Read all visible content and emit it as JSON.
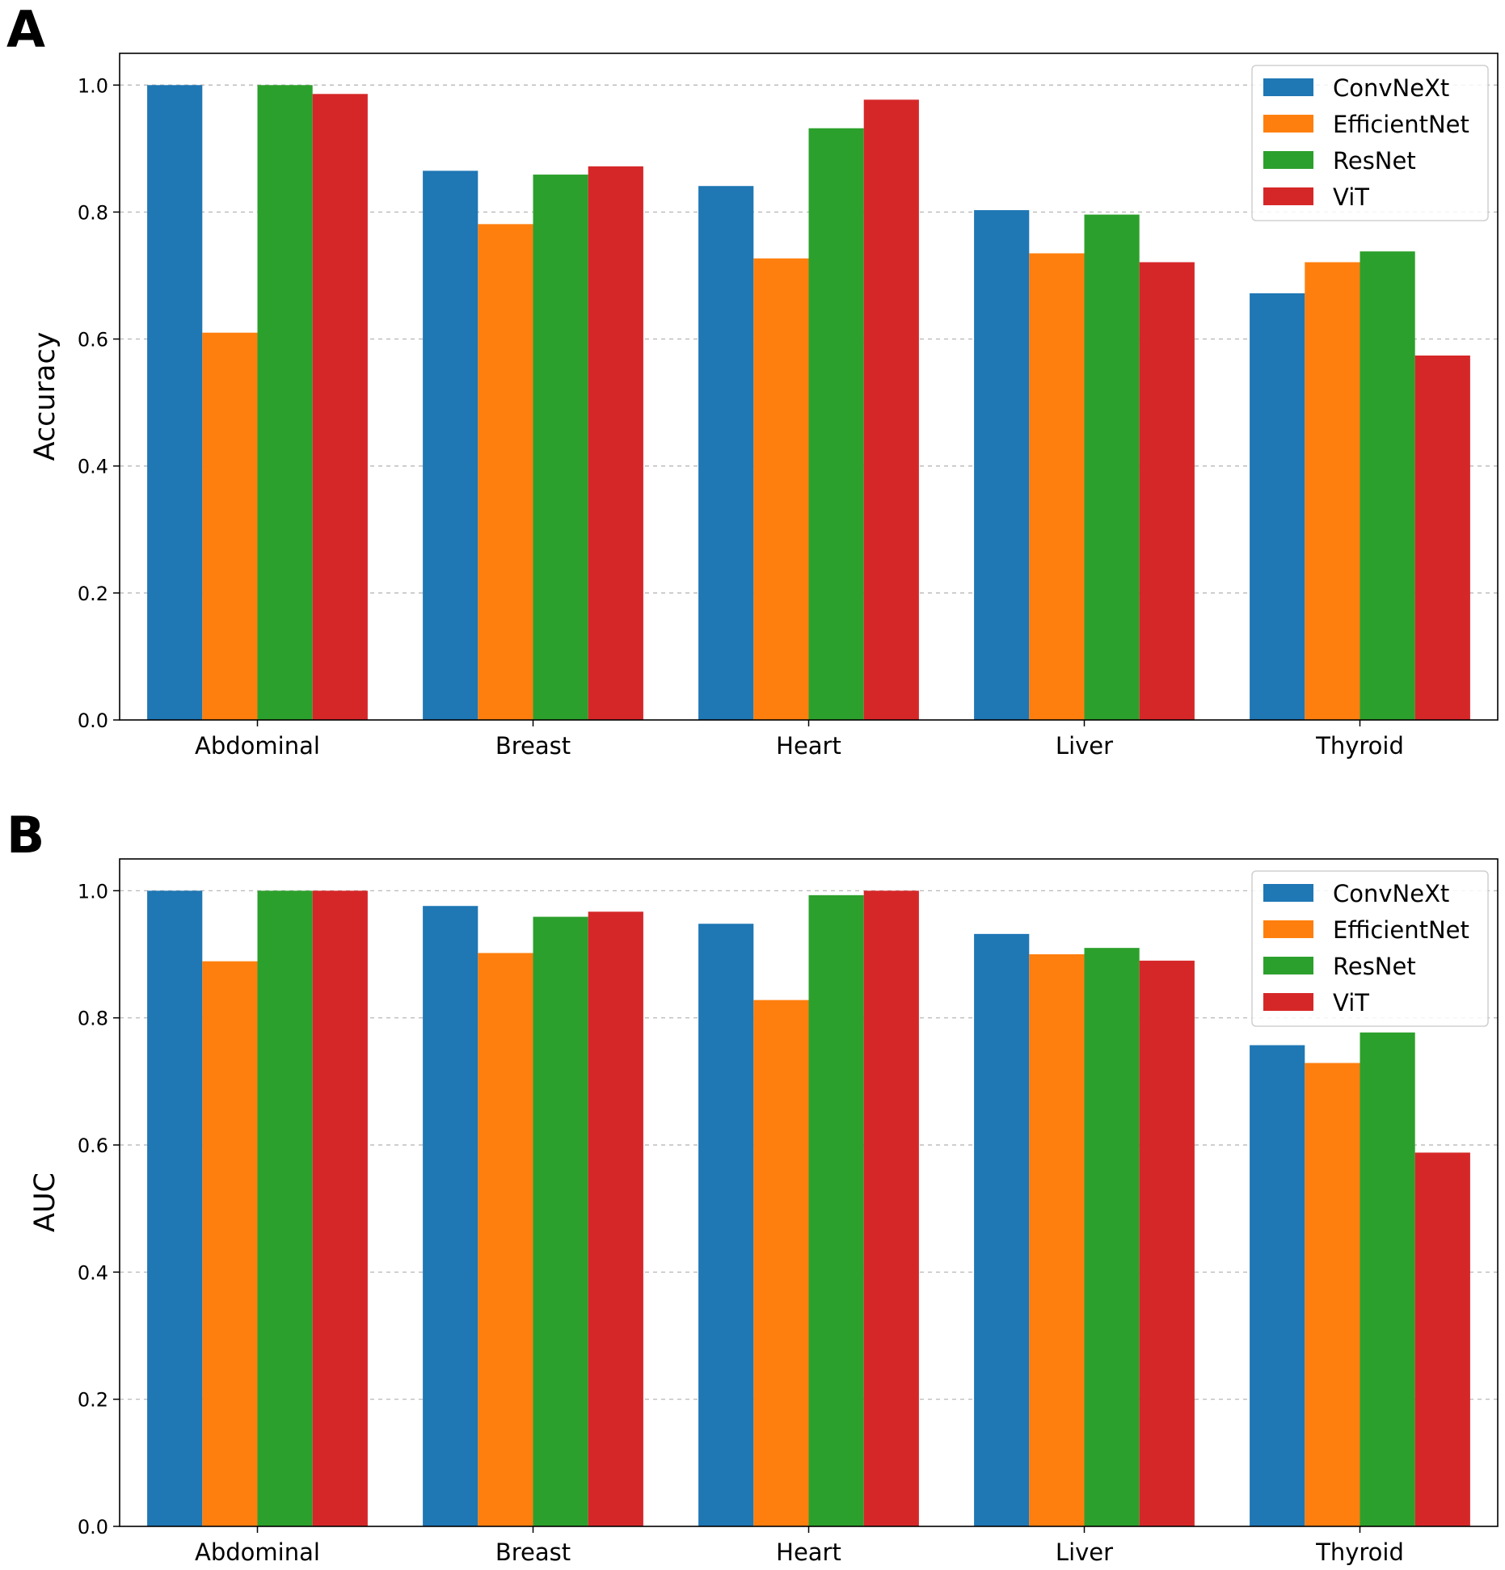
{
  "chart_data": [
    {
      "panel": "A",
      "type": "bar",
      "title": "",
      "xlabel": "",
      "ylabel": "Accuracy",
      "ylim": [
        0,
        1.05
      ],
      "yticks": [
        "0.0",
        "0.2",
        "0.4",
        "0.6",
        "0.8",
        "1.0"
      ],
      "grid": "horizontal dashed",
      "legend_position": "top-right",
      "categories": [
        "Abdominal",
        "Breast",
        "Heart",
        "Liver",
        "Thyroid"
      ],
      "series": [
        {
          "name": "ConvNeXt",
          "color": "#1f77b4",
          "values": [
            1.0,
            0.865,
            0.841,
            0.803,
            0.672
          ]
        },
        {
          "name": "EfficientNet",
          "color": "#ff7f0e",
          "values": [
            0.61,
            0.781,
            0.727,
            0.735,
            0.721
          ]
        },
        {
          "name": "ResNet",
          "color": "#2ca02c",
          "values": [
            1.0,
            0.859,
            0.932,
            0.796,
            0.738
          ]
        },
        {
          "name": "ViT",
          "color": "#d62728",
          "values": [
            0.986,
            0.872,
            0.977,
            0.721,
            0.574
          ]
        }
      ]
    },
    {
      "panel": "B",
      "type": "bar",
      "title": "",
      "xlabel": "",
      "ylabel": "AUC",
      "ylim": [
        0,
        1.05
      ],
      "yticks": [
        "0.0",
        "0.2",
        "0.4",
        "0.6",
        "0.8",
        "1.0"
      ],
      "grid": "horizontal dashed",
      "legend_position": "top-right",
      "categories": [
        "Abdominal",
        "Breast",
        "Heart",
        "Liver",
        "Thyroid"
      ],
      "series": [
        {
          "name": "ConvNeXt",
          "color": "#1f77b4",
          "values": [
            1.0,
            0.976,
            0.948,
            0.932,
            0.757
          ]
        },
        {
          "name": "EfficientNet",
          "color": "#ff7f0e",
          "values": [
            0.889,
            0.902,
            0.828,
            0.9,
            0.729
          ]
        },
        {
          "name": "ResNet",
          "color": "#2ca02c",
          "values": [
            1.0,
            0.959,
            0.993,
            0.91,
            0.777
          ]
        },
        {
          "name": "ViT",
          "color": "#d62728",
          "values": [
            1.0,
            0.967,
            1.0,
            0.89,
            0.588
          ]
        }
      ]
    }
  ]
}
